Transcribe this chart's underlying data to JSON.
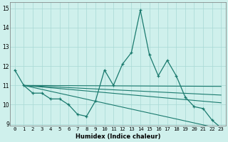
{
  "xlabel": "Humidex (Indice chaleur)",
  "xlim": [
    -0.5,
    23.5
  ],
  "ylim": [
    8.9,
    15.3
  ],
  "yticks": [
    9,
    10,
    11,
    12,
    13,
    14,
    15
  ],
  "xticks": [
    0,
    1,
    2,
    3,
    4,
    5,
    6,
    7,
    8,
    9,
    10,
    11,
    12,
    13,
    14,
    15,
    16,
    17,
    18,
    19,
    20,
    21,
    22,
    23
  ],
  "background_color": "#cff0ec",
  "grid_color": "#a8d8d4",
  "line_color": "#1a7a6e",
  "main_series": [
    11.8,
    11.0,
    10.6,
    10.6,
    10.3,
    10.3,
    10.0,
    9.5,
    9.4,
    10.2,
    11.8,
    11.0,
    12.1,
    12.7,
    14.9,
    12.6,
    11.5,
    12.3,
    11.5,
    10.4,
    9.9,
    9.8,
    9.2,
    8.8
  ],
  "trend_lines": [
    {
      "start_x": 1,
      "start_y": 11.0,
      "end_x": 23,
      "end_y": 10.95
    },
    {
      "start_x": 1,
      "start_y": 11.0,
      "end_x": 23,
      "end_y": 10.5
    },
    {
      "start_x": 1,
      "start_y": 11.0,
      "end_x": 23,
      "end_y": 10.1
    },
    {
      "start_x": 1,
      "start_y": 11.0,
      "end_x": 23,
      "end_y": 8.75
    }
  ]
}
